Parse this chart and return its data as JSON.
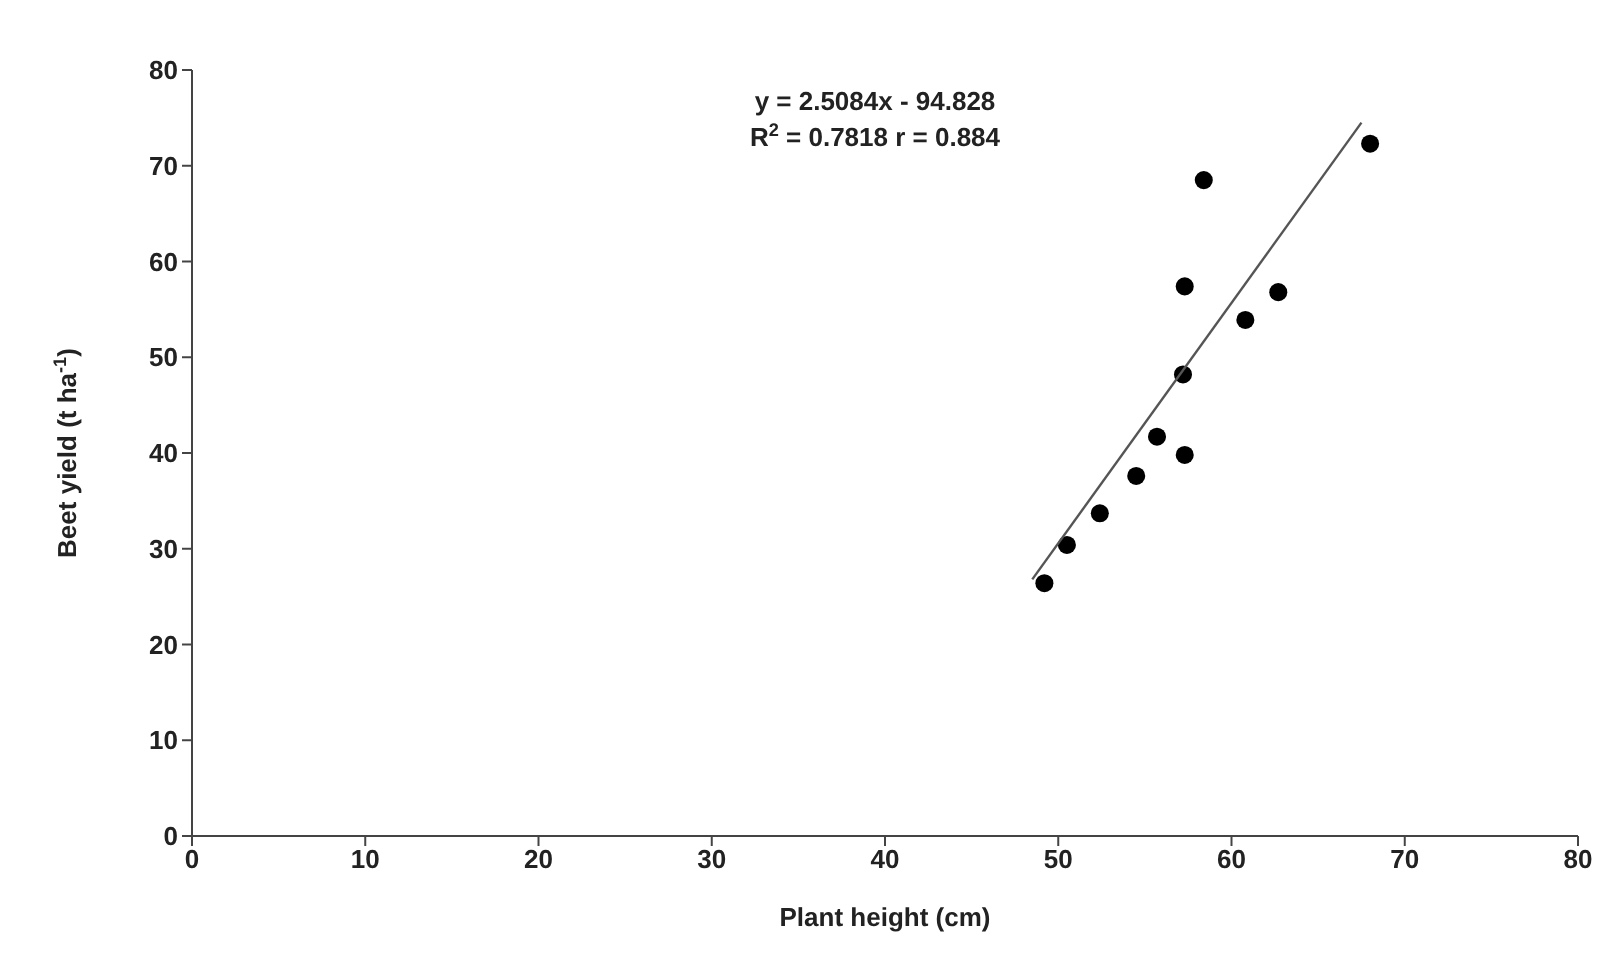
{
  "chart_data": {
    "type": "scatter",
    "xlabel": "Plant height (cm)",
    "ylabel": "Beet yield (t ha$^{-1}$)",
    "annotations": [
      "y = 2.5084x - 94.828",
      "R$^{2}$ = 0.7818 r = 0.884"
    ],
    "xlim": [
      0,
      80
    ],
    "xticks": [
      0,
      10,
      20,
      30,
      40,
      50,
      60,
      70,
      80
    ],
    "ylim": [
      0,
      80
    ],
    "yticks": [
      0,
      10,
      20,
      30,
      40,
      50,
      60,
      70,
      80
    ],
    "grid": false,
    "legend": false,
    "marker": "circle",
    "series": [
      {
        "color": "#000000",
        "x": [
          49.2,
          50.5,
          52.4,
          54.5,
          55.7,
          57.3,
          57.2,
          57.3,
          58.4,
          60.8,
          62.7,
          68.0
        ],
        "values": [
          26.4,
          30.4,
          33.7,
          37.6,
          41.7,
          39.8,
          48.2,
          57.4,
          68.5,
          53.9,
          56.8,
          72.3
        ]
      },
      {
        "type": "line",
        "color": "#555555",
        "marker": "none",
        "x": [
          48.5,
          67.5
        ],
        "values": [
          26.8,
          74.5
        ]
      }
    ]
  }
}
